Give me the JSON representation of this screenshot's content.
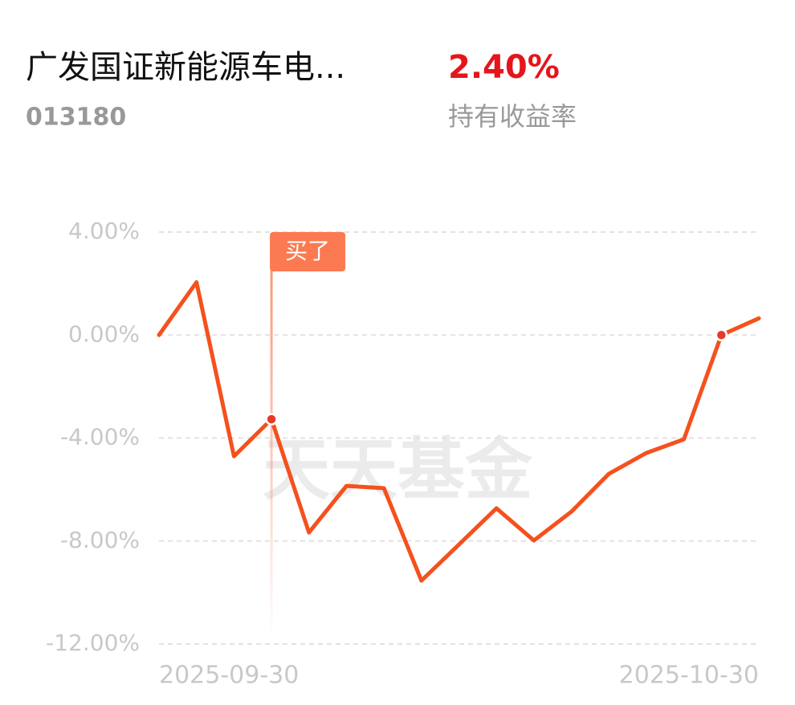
{
  "header": {
    "title": "广发国证新能源车电...",
    "code": "013180",
    "return_value": "2.40%",
    "return_label": "持有收益率"
  },
  "chart_data": {
    "type": "line",
    "categories": [
      "2025-09-30",
      null,
      null,
      null,
      null,
      null,
      null,
      null,
      null,
      null,
      null,
      null,
      null,
      null,
      null,
      null,
      "2025-10-30"
    ],
    "values": [
      0,
      2.05,
      -4.71,
      -3.27,
      -7.67,
      -5.86,
      -5.95,
      -9.54,
      -8.14,
      -6.73,
      -7.98,
      -6.86,
      -5.39,
      -4.58,
      -4.05,
      0,
      0.65
    ],
    "color": "#f4511e",
    "ylim": [
      -12,
      4
    ],
    "yticks": [
      {
        "value": 4,
        "label": "4.00%"
      },
      {
        "value": 0,
        "label": "0.00%"
      },
      {
        "value": -4,
        "label": "-4.00%"
      },
      {
        "value": -8,
        "label": "-8.00%"
      },
      {
        "value": -12,
        "label": "-12.00%"
      }
    ],
    "grid": true,
    "annotations": [
      {
        "text": "买了",
        "index": 3
      }
    ],
    "markers": [
      3,
      15
    ],
    "watermark": "天天基金"
  }
}
